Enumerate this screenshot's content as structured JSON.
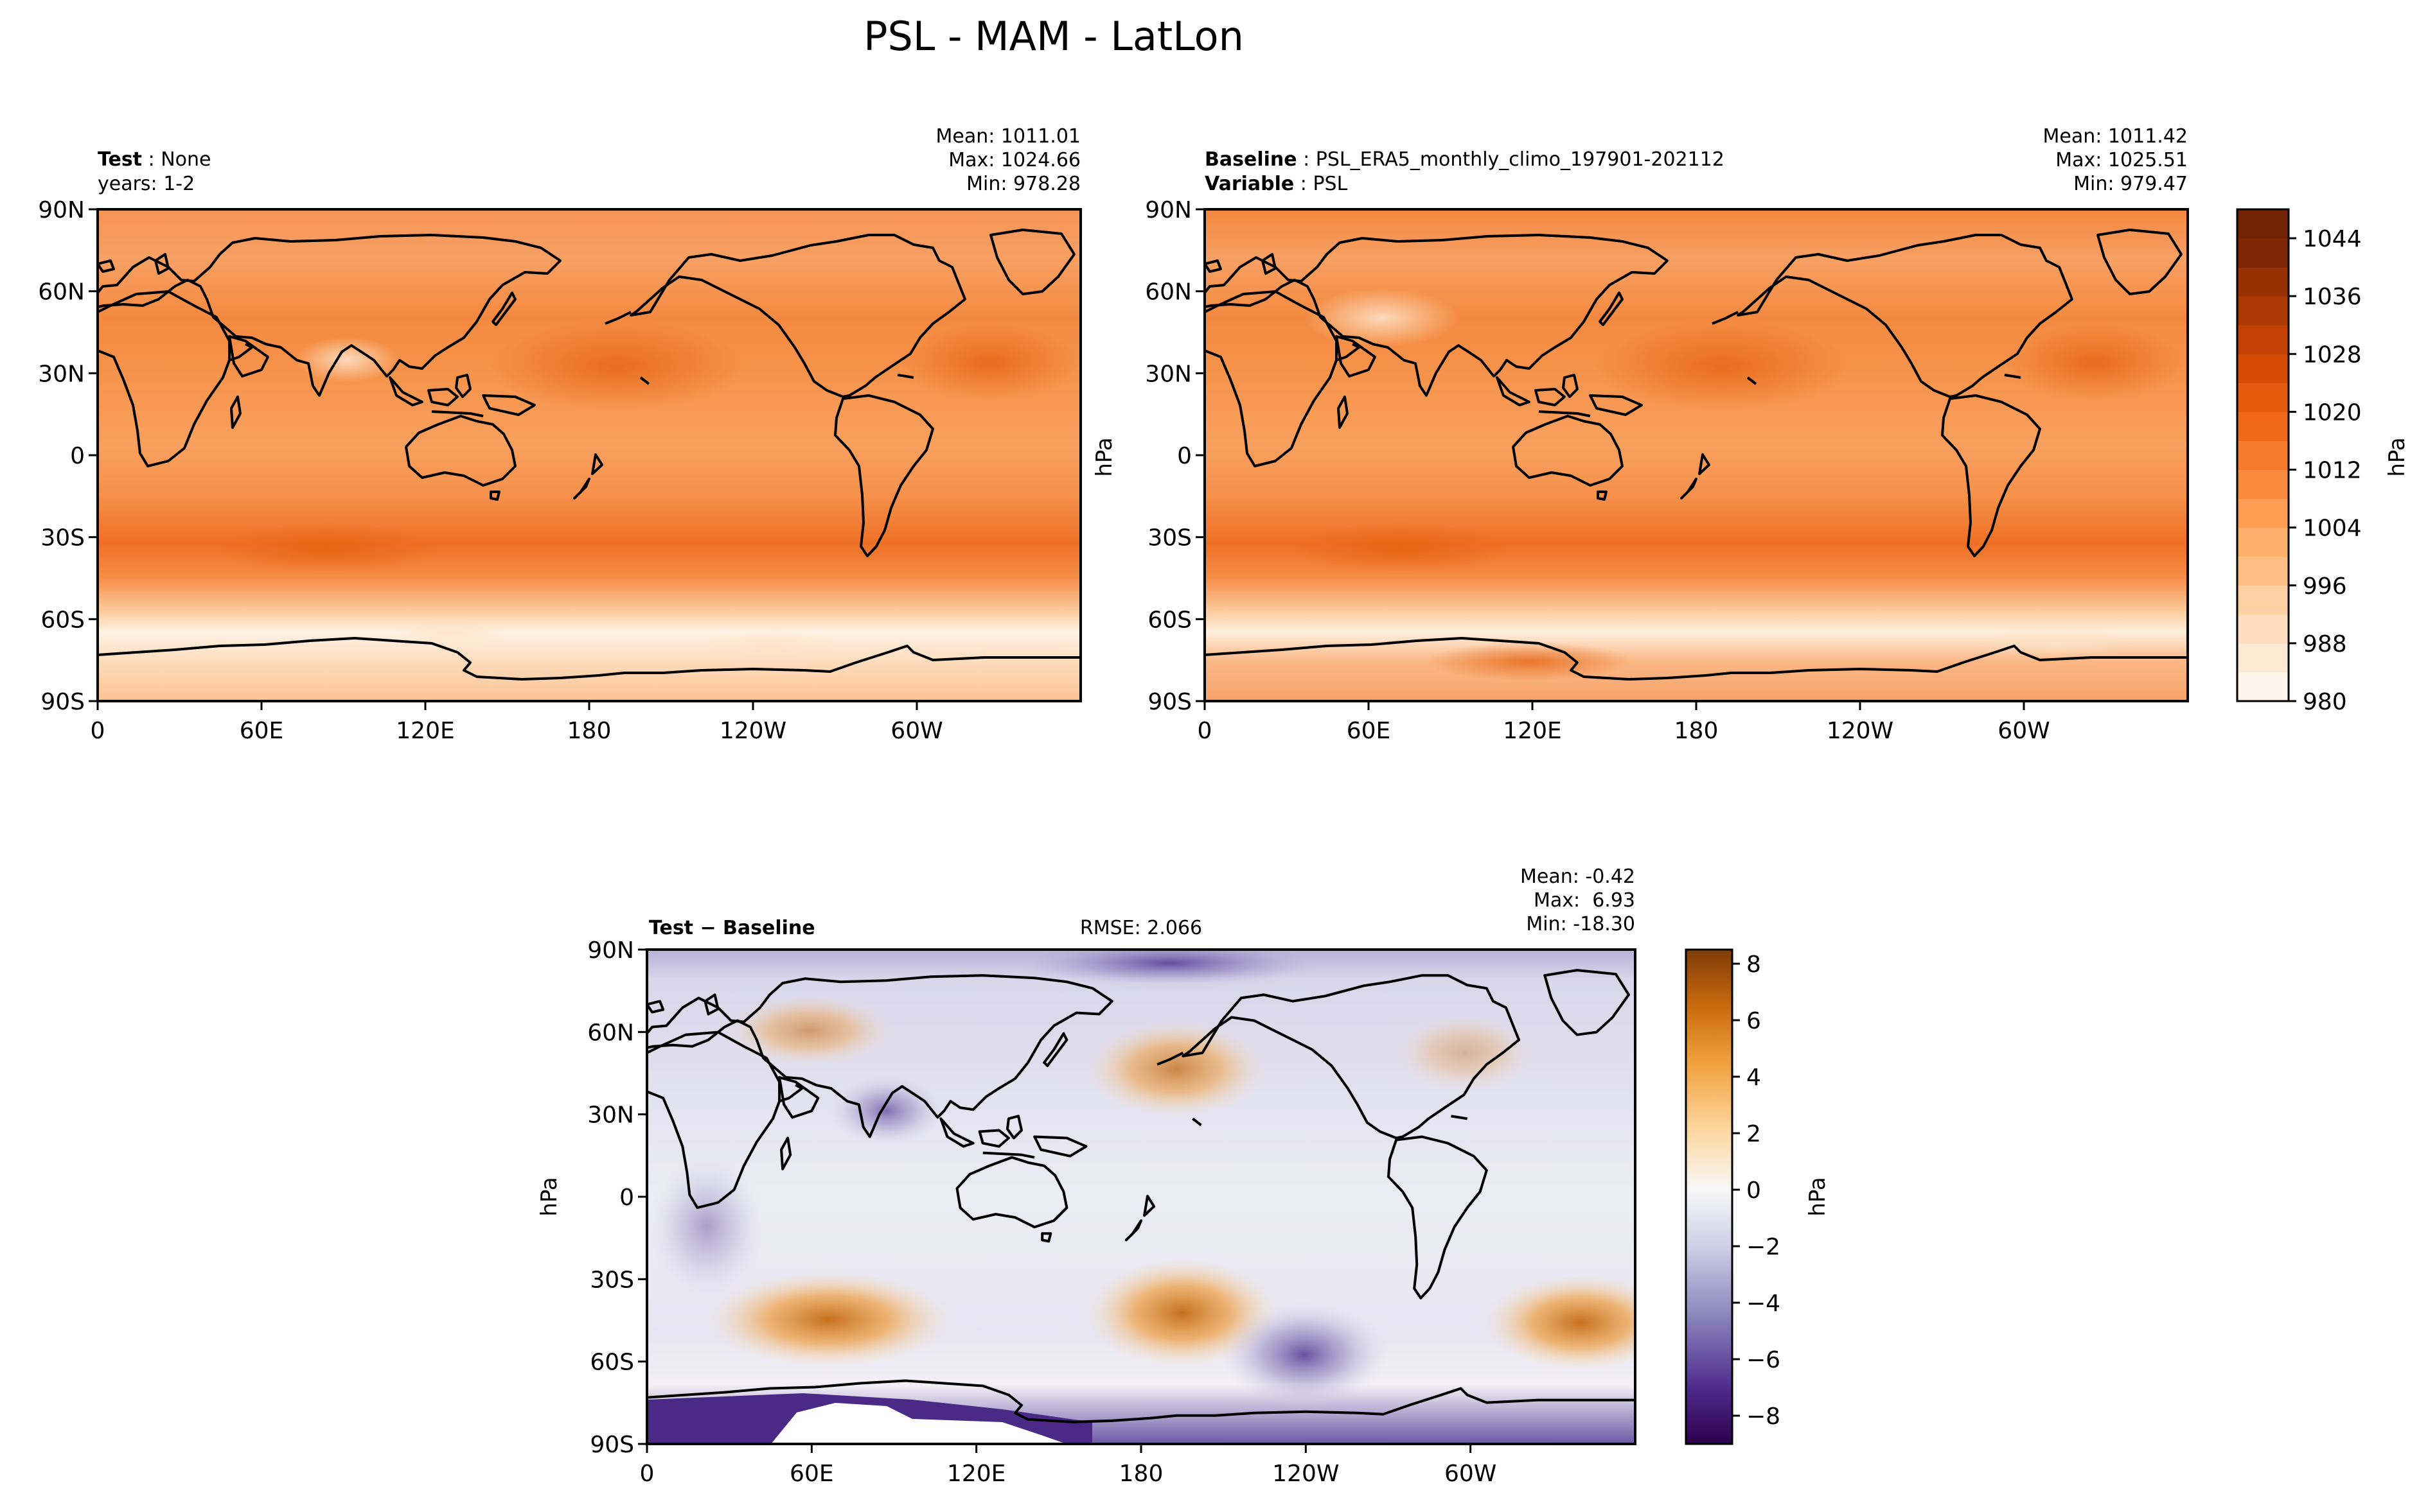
{
  "figure": {
    "title": "PSL - MAM - LatLon"
  },
  "chart_data": [
    {
      "type": "heatmap",
      "panel": "test",
      "header_left": [
        {
          "bold": "Test",
          "text": "None"
        },
        {
          "bold": "",
          "text": "years: 1-2"
        }
      ],
      "stats": [
        "Mean: 1011.01",
        "Max: 1024.66",
        "Min: 978.28"
      ],
      "xticks": [
        "0",
        "60E",
        "120E",
        "180",
        "120W",
        "60W"
      ],
      "yticks": [
        "90N",
        "60N",
        "30N",
        "0",
        "30S",
        "60S",
        "90S"
      ],
      "ylabel": "",
      "colorbar": "orange"
    },
    {
      "type": "heatmap",
      "panel": "baseline",
      "header_left": [
        {
          "bold": "Baseline",
          "text": "PSL_ERA5_monthly_climo_197901-202112"
        },
        {
          "bold": "Variable",
          "text": "PSL"
        }
      ],
      "stats": [
        "Mean: 1011.42",
        "Max: 1025.51",
        "Min: 979.47"
      ],
      "xticks": [
        "0",
        "60E",
        "120E",
        "180",
        "120W",
        "60W"
      ],
      "yticks": [
        "90N",
        "60N",
        "30N",
        "0",
        "30S",
        "60S",
        "90S"
      ],
      "ylabel": "hPa",
      "colorbar": "orange"
    },
    {
      "type": "heatmap",
      "panel": "difference",
      "header_left": [
        {
          "bold": "Test − Baseline",
          "text": ""
        }
      ],
      "rmse": "RMSE: 2.066",
      "stats": [
        "Mean: -0.42",
        "Max:  6.93",
        "Min: -18.30"
      ],
      "xticks": [
        "0",
        "60E",
        "120E",
        "180",
        "120W",
        "60W"
      ],
      "yticks": [
        "90N",
        "60N",
        "30N",
        "0",
        "30S",
        "60S",
        "90S"
      ],
      "ylabel": "hPa",
      "colorbar": "diverging"
    }
  ],
  "colorbars": {
    "orange": {
      "label": "hPa",
      "range": [
        980,
        1048
      ],
      "ticks": [
        980,
        988,
        996,
        1004,
        1012,
        1020,
        1028,
        1036,
        1044
      ],
      "levels": [
        980,
        984,
        988,
        992,
        996,
        1000,
        1004,
        1008,
        1012,
        1016,
        1020,
        1024,
        1028,
        1032,
        1036,
        1040,
        1044,
        1048
      ],
      "colors": [
        "#fff5eb",
        "#fee9d5",
        "#fdddbd",
        "#fdcfa2",
        "#fdbf86",
        "#fdaf6c",
        "#fd9e54",
        "#fb8b3f",
        "#f67a2c",
        "#ee6a1a",
        "#e45a0e",
        "#d44c06",
        "#c24003",
        "#ab3803",
        "#963103",
        "#7f2704",
        "#702203"
      ]
    },
    "diverging": {
      "label": "hPa",
      "range": [
        -9,
        8.5
      ],
      "ticks": [
        -8,
        -6,
        -4,
        -2,
        0,
        2,
        4,
        6,
        8
      ],
      "stops": [
        {
          "v": -9,
          "c": "#2d004b"
        },
        {
          "v": -7,
          "c": "#4f2c8d"
        },
        {
          "v": -4.5,
          "c": "#8b84bb"
        },
        {
          "v": -2,
          "c": "#cfcfe6"
        },
        {
          "v": 0,
          "c": "#f7f7f7"
        },
        {
          "v": 2,
          "c": "#fdd9a5"
        },
        {
          "v": 4.5,
          "c": "#f0a13d"
        },
        {
          "v": 6.5,
          "c": "#c86b0e"
        },
        {
          "v": 8.5,
          "c": "#7f3b08"
        }
      ]
    }
  }
}
